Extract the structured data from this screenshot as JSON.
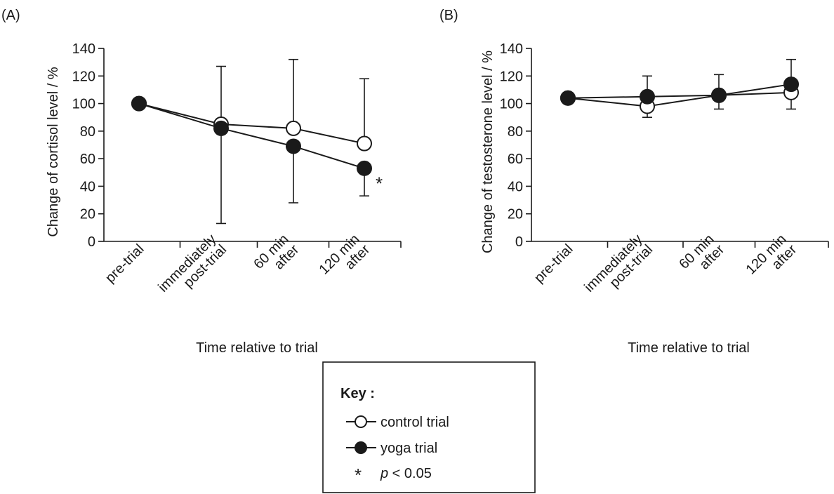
{
  "chart_data": [
    {
      "panel_label": "(A)",
      "type": "line",
      "categories": [
        [
          "pre-trial"
        ],
        [
          "immediately",
          "post-trial"
        ],
        [
          "60 min",
          "after"
        ],
        [
          "120 min",
          "after"
        ]
      ],
      "xlabel": "Time relative to trial",
      "ylabel": "Change of cortisol level / %",
      "ylim": [
        0,
        140
      ],
      "yticks": [
        0,
        20,
        40,
        60,
        80,
        100,
        120,
        140
      ],
      "grid": false,
      "series": [
        {
          "marker": "open",
          "values": [
            100,
            85,
            82,
            71
          ],
          "err_up": [
            0,
            42,
            50,
            47
          ],
          "err_down": [
            0,
            0,
            0,
            0
          ]
        },
        {
          "marker": "filled",
          "values": [
            100,
            82,
            69,
            53
          ],
          "err_up": [
            0,
            0,
            0,
            0
          ],
          "err_down": [
            0,
            69,
            41,
            20
          ]
        }
      ],
      "annotations": [
        {
          "text": "*",
          "category_index": 3,
          "y": 42
        }
      ]
    },
    {
      "panel_label": "(B)",
      "type": "line",
      "categories": [
        [
          "pre-trial"
        ],
        [
          "immediately",
          "post-trial"
        ],
        [
          "60 min",
          "after"
        ],
        [
          "120 min",
          "after"
        ]
      ],
      "xlabel": "Time relative to trial",
      "ylabel": "Change of testosterone level / %",
      "ylim": [
        0,
        140
      ],
      "yticks": [
        0,
        20,
        40,
        60,
        80,
        100,
        120,
        140
      ],
      "grid": false,
      "series": [
        {
          "marker": "open",
          "values": [
            104,
            98,
            106,
            108
          ],
          "err_up": [
            0,
            0,
            0,
            0
          ],
          "err_down": [
            0,
            8,
            10,
            12
          ]
        },
        {
          "marker": "filled",
          "values": [
            104,
            105,
            106,
            114
          ],
          "err_up": [
            0,
            15,
            15,
            18
          ],
          "err_down": [
            0,
            0,
            0,
            0
          ]
        }
      ],
      "annotations": []
    }
  ],
  "key": {
    "title": "Key :",
    "items": [
      {
        "marker": "open",
        "label": "control trial"
      },
      {
        "marker": "filled",
        "label": "yoga trial"
      },
      {
        "marker": "asterisk",
        "symbol": "*",
        "label_italic": "p",
        "label_rest": " < 0.05"
      }
    ]
  }
}
